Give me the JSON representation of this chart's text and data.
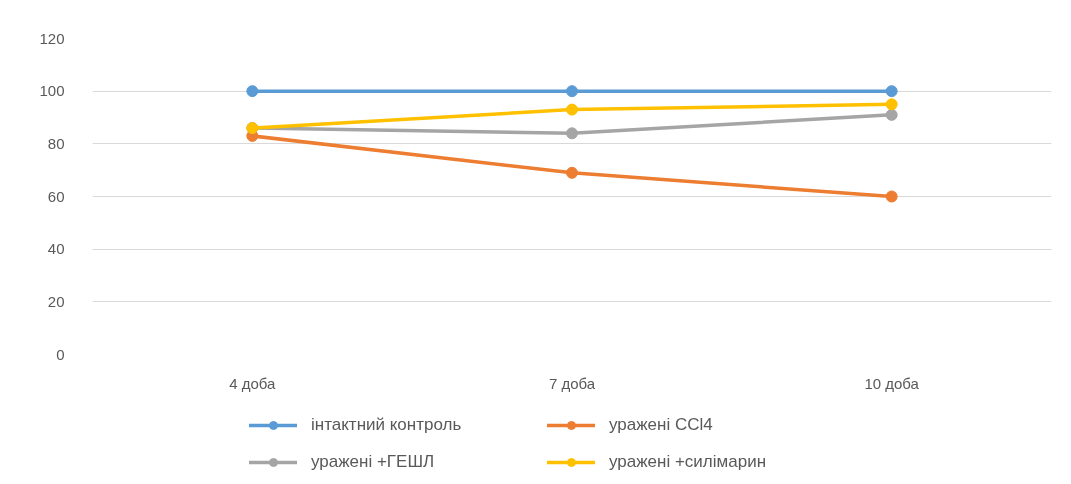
{
  "chart_data": {
    "type": "line",
    "categories": [
      "4 доба",
      "7 доба",
      "10 доба"
    ],
    "series": [
      {
        "name": "інтактний контроль",
        "color": "#5b9bd5",
        "values": [
          100,
          100,
          100
        ]
      },
      {
        "name": "уражені CCl4",
        "color": "#ed7d31",
        "values": [
          83,
          69,
          60
        ]
      },
      {
        "name": "уражені +ГЕШЛ",
        "color": "#a5a5a5",
        "values": [
          86,
          84,
          91
        ]
      },
      {
        "name": "уражені +силімарин",
        "color": "#ffc000",
        "values": [
          86,
          93,
          95
        ]
      }
    ],
    "ylim": [
      0,
      120
    ],
    "yticks": [
      0,
      20,
      40,
      60,
      80,
      100,
      120
    ],
    "grid": "y",
    "legend": "bottom",
    "marker": "circle",
    "line_style": "solid"
  }
}
